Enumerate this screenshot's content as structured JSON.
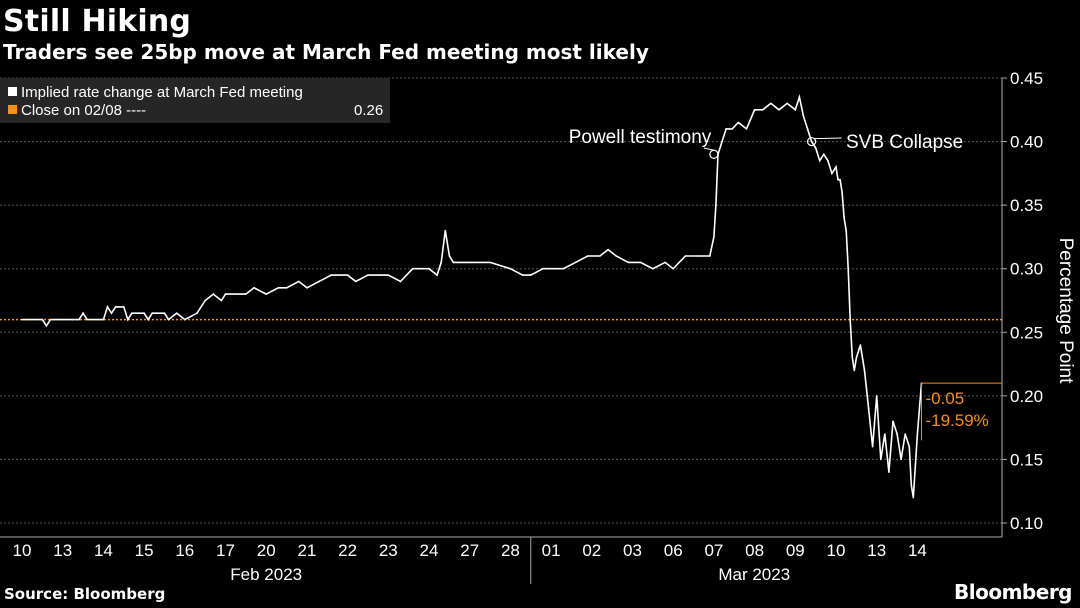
{
  "title": "Still Hiking",
  "subtitle": "Traders see 25bp move at March Fed meeting most likely",
  "source": "Source: Bloomberg",
  "brand": "Bloomberg",
  "colors": {
    "series": "#ffffff",
    "reference": "#f5901e",
    "grid": "#555555",
    "background": "#000000",
    "legend_bg": "#262626"
  },
  "legend": {
    "series_label": "Implied rate change at March Fed meeting",
    "reference_label": "Close on 02/08 ----",
    "reference_value": "0.26"
  },
  "chart_data": {
    "type": "line",
    "title": "Still Hiking",
    "subtitle": "Traders see 25bp move at March Fed meeting most likely",
    "ylabel": "Percentage Point",
    "ylim": [
      0.1,
      0.45
    ],
    "yticks": [
      "0.10",
      "0.15",
      "0.20",
      "0.25",
      "0.30",
      "0.35",
      "0.40",
      "0.45"
    ],
    "x_days": [
      "10",
      "13",
      "14",
      "15",
      "16",
      "17",
      "20",
      "21",
      "22",
      "23",
      "24",
      "27",
      "28",
      "01",
      "02",
      "03",
      "06",
      "07",
      "08",
      "09",
      "10",
      "13",
      "14"
    ],
    "x_groups": [
      "Feb 2023",
      "Mar 2023"
    ],
    "reference_line": 0.26,
    "change_label": "-0.05",
    "change_pct_label": "-19.59%",
    "annotations": [
      {
        "text": "Powell testimony",
        "x": 17.0,
        "y": 0.39
      },
      {
        "text": "SVB Collapse",
        "x": 19.4,
        "y": 0.4
      }
    ],
    "series": [
      {
        "name": "Implied rate change at March Fed meeting",
        "x": [
          0,
          0.5,
          0.6,
          0.7,
          0.8,
          1.0,
          1.4,
          1.5,
          1.6,
          2.0,
          2.1,
          2.2,
          2.3,
          2.5,
          2.6,
          2.7,
          3.0,
          3.1,
          3.2,
          3.5,
          3.6,
          3.8,
          4.0,
          4.3,
          4.5,
          4.7,
          4.9,
          5.0,
          5.2,
          5.5,
          5.7,
          6.0,
          6.3,
          6.5,
          6.8,
          7.0,
          7.3,
          7.6,
          8.0,
          8.2,
          8.5,
          8.8,
          9.0,
          9.3,
          9.6,
          10.0,
          10.2,
          10.3,
          10.4,
          10.5,
          10.6,
          10.8,
          11.0,
          11.5,
          12.0,
          12.3,
          12.5,
          12.8,
          13.0,
          13.3,
          13.6,
          13.9,
          14.2,
          14.4,
          14.6,
          14.9,
          15.2,
          15.5,
          15.8,
          16.0,
          16.3,
          16.6,
          16.9,
          17.0,
          17.05,
          17.1,
          17.2,
          17.3,
          17.45,
          17.6,
          17.8,
          18.0,
          18.2,
          18.4,
          18.6,
          18.8,
          19.0,
          19.1,
          19.2,
          19.3,
          19.4,
          19.5,
          19.6,
          19.7,
          19.8,
          19.9,
          20.0,
          20.05,
          20.1,
          20.15,
          20.2,
          20.25,
          20.3,
          20.35,
          20.4,
          20.45,
          20.5,
          20.6,
          20.7,
          20.8,
          20.9,
          21.0,
          21.1,
          21.2,
          21.3,
          21.4,
          21.5,
          21.6,
          21.7,
          21.8,
          21.85,
          21.9,
          22.0,
          22.1
        ],
        "y": [
          0.26,
          0.26,
          0.255,
          0.26,
          0.26,
          0.26,
          0.26,
          0.265,
          0.26,
          0.26,
          0.27,
          0.265,
          0.27,
          0.27,
          0.26,
          0.265,
          0.265,
          0.26,
          0.265,
          0.265,
          0.26,
          0.265,
          0.26,
          0.265,
          0.275,
          0.28,
          0.275,
          0.28,
          0.28,
          0.28,
          0.285,
          0.28,
          0.285,
          0.285,
          0.29,
          0.285,
          0.29,
          0.295,
          0.295,
          0.29,
          0.295,
          0.295,
          0.295,
          0.29,
          0.3,
          0.3,
          0.295,
          0.305,
          0.33,
          0.31,
          0.305,
          0.305,
          0.305,
          0.305,
          0.3,
          0.295,
          0.295,
          0.3,
          0.3,
          0.3,
          0.305,
          0.31,
          0.31,
          0.315,
          0.31,
          0.305,
          0.305,
          0.3,
          0.305,
          0.3,
          0.31,
          0.31,
          0.31,
          0.325,
          0.35,
          0.39,
          0.4,
          0.41,
          0.41,
          0.415,
          0.41,
          0.425,
          0.425,
          0.43,
          0.425,
          0.43,
          0.425,
          0.435,
          0.42,
          0.41,
          0.4,
          0.395,
          0.385,
          0.39,
          0.385,
          0.375,
          0.38,
          0.37,
          0.37,
          0.36,
          0.34,
          0.33,
          0.3,
          0.26,
          0.23,
          0.22,
          0.23,
          0.24,
          0.22,
          0.19,
          0.16,
          0.2,
          0.15,
          0.17,
          0.14,
          0.18,
          0.17,
          0.15,
          0.17,
          0.16,
          0.13,
          0.12,
          0.17,
          0.21
        ]
      }
    ]
  }
}
